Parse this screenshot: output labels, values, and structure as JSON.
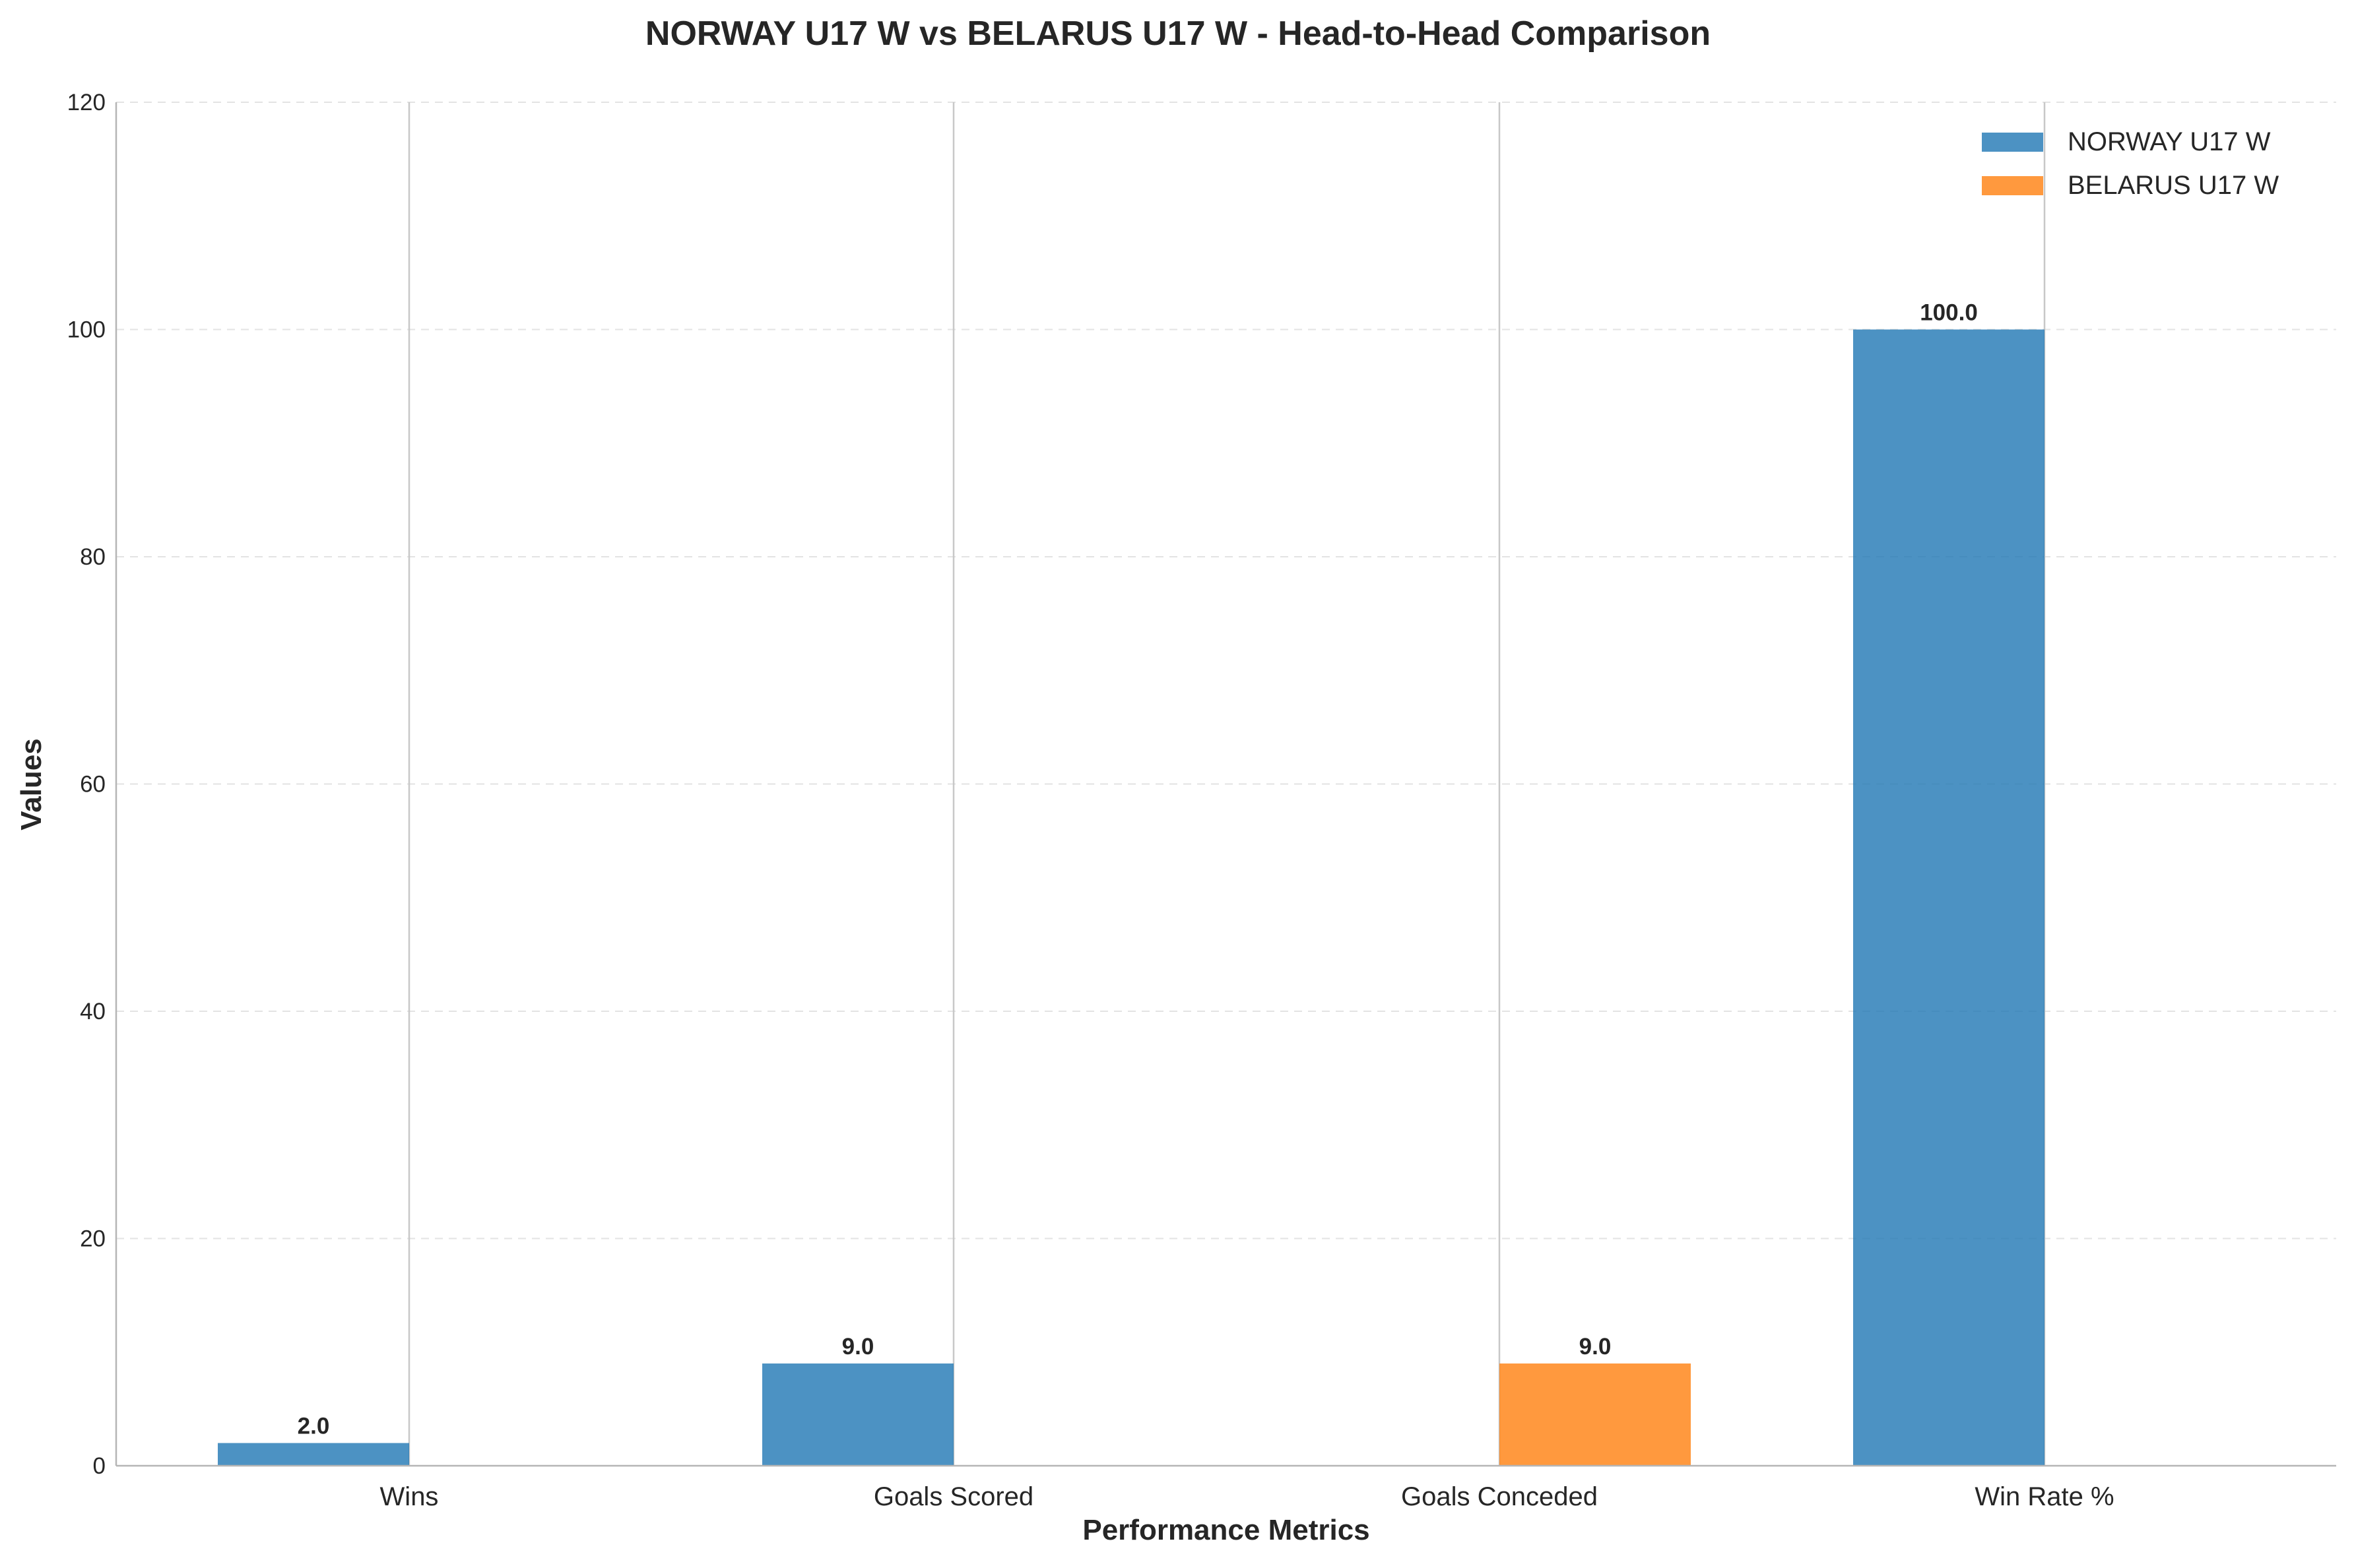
{
  "chart_data": {
    "type": "bar",
    "title": "NORWAY U17 W vs BELARUS U17 W - Head-to-Head Comparison",
    "xlabel": "Performance Metrics",
    "ylabel": "Values",
    "categories": [
      "Wins",
      "Goals Scored",
      "Goals Conceded",
      "Win Rate %"
    ],
    "series": [
      {
        "name": "NORWAY U17 W",
        "color": "#1f77b4",
        "values": [
          2.0,
          9.0,
          0.0,
          100.0
        ]
      },
      {
        "name": "BELARUS U17 W",
        "color": "#ff7f0e",
        "values": [
          0.0,
          0.0,
          9.0,
          0.0
        ]
      }
    ],
    "value_labels": [
      "2.0",
      "9.0",
      "9.0",
      "100.0"
    ],
    "ylim": [
      0,
      120
    ],
    "yticks": [
      "0",
      "20",
      "40",
      "60",
      "80",
      "100",
      "120"
    ],
    "grid": true,
    "legend_position": "top-right"
  }
}
